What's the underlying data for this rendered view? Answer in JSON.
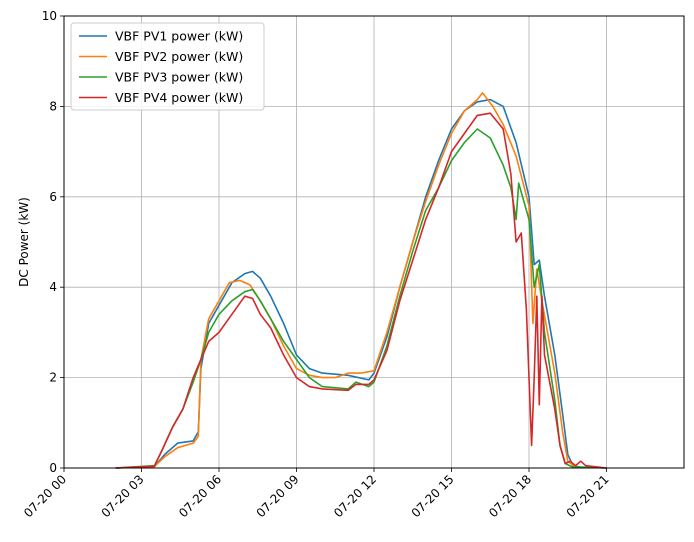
{
  "chart_data": {
    "type": "line",
    "title": "",
    "xlabel": "",
    "ylabel": "DC Power (kW)",
    "ylim": [
      0,
      10
    ],
    "xlim": [
      "07-20 00:00",
      "07-21 00:00"
    ],
    "grid": true,
    "legend": "top-left",
    "y_ticks": [
      "0",
      "2",
      "4",
      "6",
      "8",
      "10"
    ],
    "x_ticks": [
      "07-20 00",
      "07-20 03",
      "07-20 06",
      "07-20 09",
      "07-20 12",
      "07-20 15",
      "07-20 18",
      "07-20 21"
    ],
    "x_tick_hours": [
      0,
      3,
      6,
      9,
      12,
      15,
      18,
      21
    ],
    "series": [
      {
        "name": "VBF PV1 power (kW)",
        "color": "#1f77b4",
        "points": [
          [
            2.0,
            0
          ],
          [
            3.5,
            0.03
          ],
          [
            3.9,
            0.3
          ],
          [
            4.4,
            0.55
          ],
          [
            5.0,
            0.6
          ],
          [
            5.2,
            0.8
          ],
          [
            5.3,
            2.2
          ],
          [
            5.6,
            3.2
          ],
          [
            6.0,
            3.6
          ],
          [
            6.5,
            4.1
          ],
          [
            7.0,
            4.3
          ],
          [
            7.3,
            4.35
          ],
          [
            7.6,
            4.2
          ],
          [
            8.0,
            3.8
          ],
          [
            8.5,
            3.2
          ],
          [
            9.0,
            2.5
          ],
          [
            9.5,
            2.2
          ],
          [
            10.0,
            2.1
          ],
          [
            11.0,
            2.05
          ],
          [
            11.8,
            1.95
          ],
          [
            12.0,
            2.1
          ],
          [
            12.5,
            2.9
          ],
          [
            13.0,
            4.0
          ],
          [
            13.5,
            5.0
          ],
          [
            14.0,
            6.0
          ],
          [
            14.5,
            6.8
          ],
          [
            15.0,
            7.5
          ],
          [
            15.5,
            7.9
          ],
          [
            16.0,
            8.1
          ],
          [
            16.5,
            8.15
          ],
          [
            17.0,
            8.0
          ],
          [
            17.5,
            7.2
          ],
          [
            18.0,
            6.0
          ],
          [
            18.2,
            4.5
          ],
          [
            18.4,
            4.6
          ],
          [
            18.6,
            3.8
          ],
          [
            19.0,
            2.5
          ],
          [
            19.3,
            1.2
          ],
          [
            19.5,
            0.3
          ],
          [
            19.7,
            0.05
          ],
          [
            20.0,
            0.02
          ],
          [
            21.0,
            0
          ]
        ]
      },
      {
        "name": "VBF PV2 power (kW)",
        "color": "#ff7f0e",
        "points": [
          [
            2.0,
            0
          ],
          [
            3.5,
            0.03
          ],
          [
            3.9,
            0.25
          ],
          [
            4.4,
            0.45
          ],
          [
            5.0,
            0.55
          ],
          [
            5.2,
            0.7
          ],
          [
            5.3,
            2.4
          ],
          [
            5.6,
            3.3
          ],
          [
            6.0,
            3.7
          ],
          [
            6.4,
            4.1
          ],
          [
            6.8,
            4.15
          ],
          [
            7.2,
            4.05
          ],
          [
            7.6,
            3.7
          ],
          [
            8.0,
            3.3
          ],
          [
            8.5,
            2.7
          ],
          [
            9.0,
            2.2
          ],
          [
            9.5,
            2.05
          ],
          [
            10.0,
            2.0
          ],
          [
            10.5,
            2.0
          ],
          [
            11.0,
            2.1
          ],
          [
            11.5,
            2.1
          ],
          [
            12.0,
            2.15
          ],
          [
            12.5,
            3.0
          ],
          [
            13.0,
            4.0
          ],
          [
            13.5,
            5.0
          ],
          [
            14.0,
            5.9
          ],
          [
            14.5,
            6.7
          ],
          [
            15.0,
            7.4
          ],
          [
            15.5,
            7.9
          ],
          [
            16.0,
            8.15
          ],
          [
            16.2,
            8.3
          ],
          [
            16.6,
            8.0
          ],
          [
            17.0,
            7.6
          ],
          [
            17.5,
            6.9
          ],
          [
            18.0,
            5.8
          ],
          [
            18.15,
            3.2
          ],
          [
            18.3,
            4.4
          ],
          [
            18.5,
            3.7
          ],
          [
            19.0,
            2.1
          ],
          [
            19.3,
            0.8
          ],
          [
            19.5,
            0.15
          ],
          [
            19.8,
            0.02
          ],
          [
            20.5,
            0.01
          ],
          [
            21.0,
            0
          ]
        ]
      },
      {
        "name": "VBF PV3 power (kW)",
        "color": "#2ca02c",
        "points": [
          [
            2.0,
            0
          ],
          [
            3.5,
            0.05
          ],
          [
            3.8,
            0.4
          ],
          [
            4.2,
            0.9
          ],
          [
            4.6,
            1.3
          ],
          [
            5.0,
            1.9
          ],
          [
            5.3,
            2.4
          ],
          [
            5.6,
            3.0
          ],
          [
            6.0,
            3.4
          ],
          [
            6.5,
            3.7
          ],
          [
            7.0,
            3.9
          ],
          [
            7.3,
            3.95
          ],
          [
            7.6,
            3.7
          ],
          [
            8.0,
            3.3
          ],
          [
            8.5,
            2.8
          ],
          [
            9.0,
            2.4
          ],
          [
            9.5,
            2.0
          ],
          [
            10.0,
            1.8
          ],
          [
            11.0,
            1.75
          ],
          [
            11.3,
            1.9
          ],
          [
            11.8,
            1.8
          ],
          [
            12.0,
            1.9
          ],
          [
            12.5,
            2.7
          ],
          [
            13.0,
            3.8
          ],
          [
            13.5,
            4.8
          ],
          [
            14.0,
            5.7
          ],
          [
            14.5,
            6.2
          ],
          [
            15.0,
            6.8
          ],
          [
            15.5,
            7.2
          ],
          [
            16.0,
            7.5
          ],
          [
            16.5,
            7.3
          ],
          [
            17.0,
            6.7
          ],
          [
            17.3,
            6.2
          ],
          [
            17.5,
            5.5
          ],
          [
            17.6,
            6.3
          ],
          [
            18.0,
            5.5
          ],
          [
            18.2,
            4.0
          ],
          [
            18.4,
            4.5
          ],
          [
            18.6,
            3.0
          ],
          [
            19.0,
            1.5
          ],
          [
            19.2,
            0.5
          ],
          [
            19.4,
            0.1
          ],
          [
            19.7,
            0.02
          ],
          [
            20.5,
            0.01
          ],
          [
            21.0,
            0
          ]
        ]
      },
      {
        "name": "VBF PV4 power (kW)",
        "color": "#d62728",
        "points": [
          [
            2.0,
            0
          ],
          [
            3.5,
            0.04
          ],
          [
            3.8,
            0.4
          ],
          [
            4.2,
            0.9
          ],
          [
            4.6,
            1.3
          ],
          [
            5.0,
            2.0
          ],
          [
            5.3,
            2.4
          ],
          [
            5.6,
            2.8
          ],
          [
            6.0,
            3.0
          ],
          [
            6.5,
            3.4
          ],
          [
            7.0,
            3.8
          ],
          [
            7.3,
            3.75
          ],
          [
            7.6,
            3.4
          ],
          [
            8.0,
            3.1
          ],
          [
            8.5,
            2.5
          ],
          [
            9.0,
            2.0
          ],
          [
            9.5,
            1.8
          ],
          [
            10.0,
            1.75
          ],
          [
            11.0,
            1.72
          ],
          [
            11.3,
            1.85
          ],
          [
            11.8,
            1.85
          ],
          [
            12.0,
            1.95
          ],
          [
            12.5,
            2.6
          ],
          [
            13.0,
            3.7
          ],
          [
            13.5,
            4.6
          ],
          [
            14.0,
            5.5
          ],
          [
            14.5,
            6.2
          ],
          [
            15.0,
            7.0
          ],
          [
            15.5,
            7.4
          ],
          [
            16.0,
            7.8
          ],
          [
            16.5,
            7.85
          ],
          [
            17.0,
            7.5
          ],
          [
            17.3,
            6.5
          ],
          [
            17.5,
            5.0
          ],
          [
            17.7,
            5.2
          ],
          [
            17.9,
            3.5
          ],
          [
            18.0,
            2.0
          ],
          [
            18.1,
            0.5
          ],
          [
            18.2,
            2.0
          ],
          [
            18.3,
            3.8
          ],
          [
            18.4,
            1.4
          ],
          [
            18.5,
            3.8
          ],
          [
            18.6,
            2.5
          ],
          [
            19.0,
            1.3
          ],
          [
            19.2,
            0.5
          ],
          [
            19.4,
            0.1
          ],
          [
            19.6,
            0.15
          ],
          [
            19.8,
            0.05
          ],
          [
            20.0,
            0.15
          ],
          [
            20.2,
            0.05
          ],
          [
            21.0,
            0
          ]
        ]
      }
    ]
  }
}
